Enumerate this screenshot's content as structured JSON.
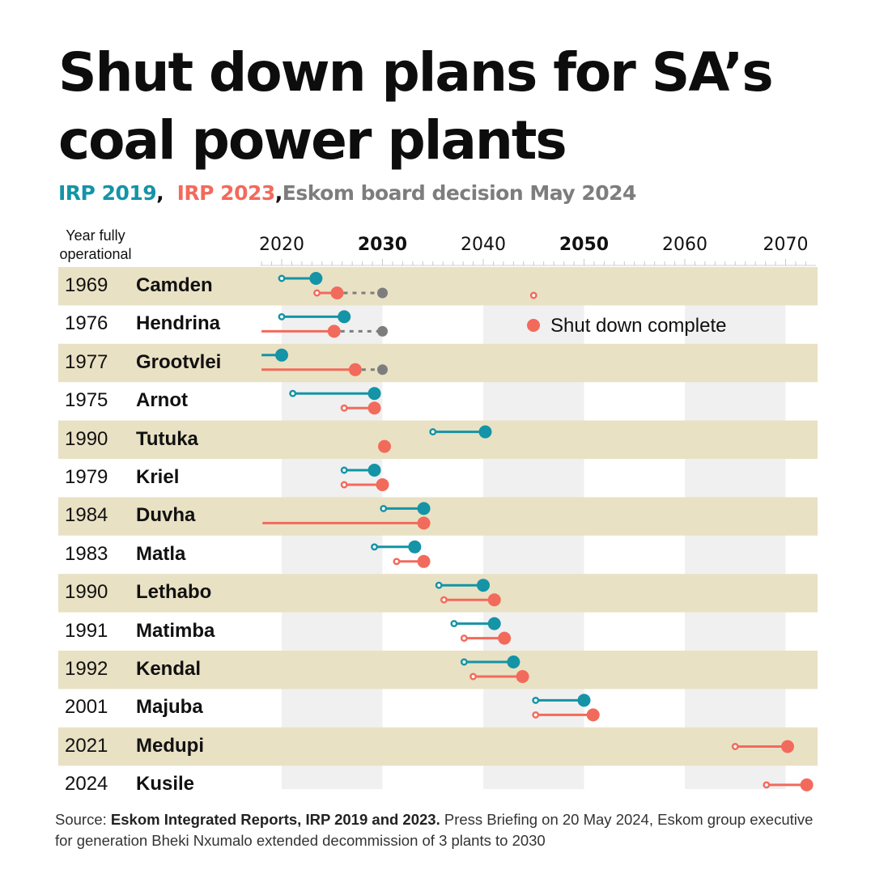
{
  "title": "Shut down plans for SA’s coal power plants",
  "subtitle": {
    "irp2019": "IRP 2019",
    "sep1": ",",
    "irp2023": "IRP 2023",
    "sep2": ",",
    "eskom": "Eskom board decision May 2024"
  },
  "colors": {
    "irp2019": "#1494a6",
    "irp2023": "#f26a5c",
    "eskom": "#7d7d7d",
    "band": "#e9e1c4",
    "grid_band": "#f0f0f0"
  },
  "year_header": "Year fully operational",
  "legend_label": "Shut down complete",
  "source": {
    "prefix": "Source: ",
    "bold": "Eskom Integrated Reports, IRP 2019 and 2023.",
    "rest": " Press Briefing on 20 May 2024, Eskom group executive for generation Bheki Nxumalo extended decommission of 3 plants to 2030"
  },
  "chart_data": {
    "type": "dumbbell",
    "x_ticks": [
      {
        "label": "2020",
        "value": 2020,
        "bold": false
      },
      {
        "label": "2030",
        "value": 2030,
        "bold": true
      },
      {
        "label": "2040",
        "value": 2040,
        "bold": false
      },
      {
        "label": "2050",
        "value": 2050,
        "bold": true
      },
      {
        "label": "2060",
        "value": 2060,
        "bold": false
      },
      {
        "label": "2070",
        "value": 2070,
        "bold": false
      }
    ],
    "xlim": [
      2018,
      2073
    ],
    "plants": [
      {
        "name": "Camden",
        "year": "1969",
        "irp2019": [
          2020,
          2023.4
        ],
        "irp2023": [
          2023.5,
          2025.5
        ],
        "eskom": [
          2025.5,
          2030
        ],
        "irp2023_extra_point": 2045
      },
      {
        "name": "Hendrina",
        "year": "1976",
        "irp2019": [
          2020,
          2026.2
        ],
        "irp2023": [
          2018,
          2025.2
        ],
        "eskom": [
          2025.2,
          2030
        ]
      },
      {
        "name": "Grootvlei",
        "year": "1977",
        "irp2019": [
          2018,
          2020
        ],
        "irp2023": [
          2018,
          2027.3
        ],
        "eskom": [
          2027.3,
          2030
        ]
      },
      {
        "name": "Arnot",
        "year": "1975",
        "irp2019": [
          2021.1,
          2029.2
        ],
        "irp2023": [
          2026.2,
          2029.2
        ]
      },
      {
        "name": "Tutuka",
        "year": "1990",
        "irp2019": [
          2035,
          2040.2
        ],
        "irp2023": [
          2030.2,
          2030.2
        ]
      },
      {
        "name": "Kriel",
        "year": "1979",
        "irp2019": [
          2026.2,
          2029.2
        ],
        "irp2023": [
          2026.2,
          2030
        ]
      },
      {
        "name": "Duvha",
        "year": "1984",
        "irp2019": [
          2030.1,
          2034.1
        ],
        "irp2023": [
          2018.1,
          2034.1
        ]
      },
      {
        "name": "Matla",
        "year": "1983",
        "irp2019": [
          2029.2,
          2033.2
        ],
        "irp2023": [
          2031.4,
          2034.1
        ]
      },
      {
        "name": "Lethabo",
        "year": "1990",
        "irp2019": [
          2035.6,
          2040
        ],
        "irp2023": [
          2036.1,
          2041.1
        ]
      },
      {
        "name": "Matimba",
        "year": "1991",
        "irp2019": [
          2037.1,
          2041.1
        ],
        "irp2023": [
          2038.1,
          2042.1
        ]
      },
      {
        "name": "Kendal",
        "year": "1992",
        "irp2019": [
          2038.1,
          2043
        ],
        "irp2023": [
          2039,
          2043.9
        ]
      },
      {
        "name": "Majuba",
        "year": "2001",
        "irp2019": [
          2045.2,
          2050
        ],
        "irp2023": [
          2045.2,
          2050.9
        ]
      },
      {
        "name": "Medupi",
        "year": "2021",
        "irp2023": [
          2065,
          2070.2
        ]
      },
      {
        "name": "Kusile",
        "year": "2024",
        "irp2023": [
          2068.1,
          2072.1
        ]
      }
    ]
  }
}
